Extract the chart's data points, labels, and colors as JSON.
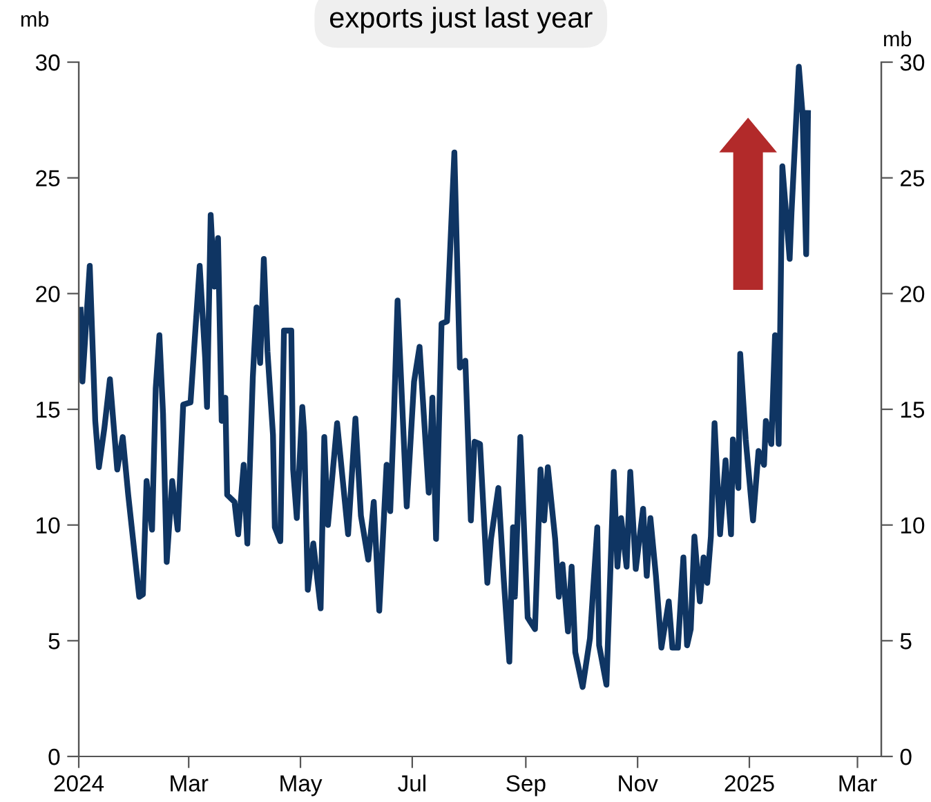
{
  "chart_data": {
    "type": "line",
    "title": "exports just last year",
    "ylabel": "mb",
    "y2label": "mb",
    "x": [
      "2024-01-02",
      "2024-01-03",
      "2024-01-07",
      "2024-01-10",
      "2024-01-12",
      "2024-01-15",
      "2024-01-18",
      "2024-01-22",
      "2024-01-25",
      "2024-01-28",
      "2024-02-03",
      "2024-02-05",
      "2024-02-07",
      "2024-02-10",
      "2024-02-12",
      "2024-02-14",
      "2024-02-16",
      "2024-02-18",
      "2024-02-21",
      "2024-02-24",
      "2024-02-27",
      "2024-03-02",
      "2024-03-07",
      "2024-03-10",
      "2024-03-11",
      "2024-03-13",
      "2024-03-15",
      "2024-03-17",
      "2024-03-19",
      "2024-03-21",
      "2024-03-22",
      "2024-03-26",
      "2024-03-28",
      "2024-03-31",
      "2024-04-02",
      "2024-04-05",
      "2024-04-07",
      "2024-04-09",
      "2024-04-11",
      "2024-04-13",
      "2024-04-16",
      "2024-04-17",
      "2024-04-20",
      "2024-04-22",
      "2024-04-26",
      "2024-04-27",
      "2024-04-29",
      "2024-05-02",
      "2024-05-03",
      "2024-05-05",
      "2024-05-08",
      "2024-05-12",
      "2024-05-14",
      "2024-05-16",
      "2024-05-21",
      "2024-05-27",
      "2024-05-31",
      "2024-06-03",
      "2024-06-07",
      "2024-06-10",
      "2024-06-13",
      "2024-06-17",
      "2024-06-19",
      "2024-06-21",
      "2024-06-23",
      "2024-06-28",
      "2024-07-02",
      "2024-07-05",
      "2024-07-10",
      "2024-07-12",
      "2024-07-14",
      "2024-07-17",
      "2024-07-20",
      "2024-07-24",
      "2024-07-27",
      "2024-07-30",
      "2024-08-02",
      "2024-08-04",
      "2024-08-07",
      "2024-08-11",
      "2024-08-13",
      "2024-08-17",
      "2024-08-20",
      "2024-08-23",
      "2024-08-25",
      "2024-08-26",
      "2024-08-29",
      "2024-09-02",
      "2024-09-06",
      "2024-09-09",
      "2024-09-11",
      "2024-09-13",
      "2024-09-17",
      "2024-09-19",
      "2024-09-21",
      "2024-09-24",
      "2024-09-26",
      "2024-09-28",
      "2024-10-02",
      "2024-10-06",
      "2024-10-10",
      "2024-10-11",
      "2024-10-15",
      "2024-10-19",
      "2024-10-21",
      "2024-10-23",
      "2024-10-26",
      "2024-10-28",
      "2024-10-31",
      "2024-11-04",
      "2024-11-06",
      "2024-11-08",
      "2024-11-11",
      "2024-11-14",
      "2024-11-18",
      "2024-11-20",
      "2024-11-23",
      "2024-11-26",
      "2024-11-28",
      "2024-11-30",
      "2024-12-02",
      "2024-12-05",
      "2024-12-07",
      "2024-12-09",
      "2024-12-11",
      "2024-12-13",
      "2024-12-16",
      "2024-12-19",
      "2024-12-22",
      "2024-12-23",
      "2024-12-26",
      "2024-12-27",
      "2024-12-30",
      "2025-01-03",
      "2025-01-06",
      "2025-01-09",
      "2025-01-10",
      "2025-01-13",
      "2025-01-15",
      "2025-01-17",
      "2025-01-19",
      "2025-01-23",
      "2025-01-24",
      "2025-01-28",
      "2025-01-30",
      "2025-02-01",
      "2025-02-02"
    ],
    "series": [
      {
        "color": "#0f3563",
        "values": [
          19.3,
          16.2,
          21.2,
          14.5,
          12.5,
          14.2,
          16.3,
          12.4,
          13.8,
          11.3,
          6.9,
          7.0,
          11.9,
          9.8,
          15.9,
          18.2,
          14.8,
          8.4,
          11.9,
          9.8,
          15.2,
          15.3,
          21.2,
          17.2,
          15.1,
          23.4,
          20.3,
          22.4,
          14.5,
          15.5,
          11.3,
          11.0,
          9.6,
          12.6,
          9.2,
          16.4,
          19.4,
          17.0,
          21.5,
          17.5,
          13.9,
          9.9,
          9.3,
          18.4,
          18.4,
          12.4,
          10.3,
          15.1,
          14.0,
          7.2,
          9.2,
          6.4,
          13.8,
          10.0,
          14.4,
          9.6,
          14.6,
          10.4,
          8.5,
          11.0,
          6.3,
          12.6,
          10.6,
          14.7,
          19.7,
          10.8,
          16.2,
          17.7,
          11.4,
          15.5,
          9.4,
          18.7,
          18.8,
          26.1,
          16.8,
          17.1,
          10.2,
          13.6,
          13.5,
          7.5,
          9.4,
          11.6,
          7.6,
          4.1,
          9.9,
          6.9,
          13.8,
          6.0,
          5.5,
          12.4,
          10.2,
          12.5,
          9.4,
          6.9,
          8.3,
          5.4,
          8.2,
          4.5,
          3.0,
          5.1,
          9.9,
          4.8,
          3.1,
          12.3,
          8.2,
          10.3,
          8.2,
          12.3,
          8.1,
          10.7,
          7.8,
          10.3,
          7.8,
          4.7,
          6.7,
          4.7,
          4.7,
          8.6,
          4.8,
          5.5,
          9.5,
          6.7,
          8.6,
          7.5,
          9.5,
          14.4,
          9.6,
          12.8,
          9.6,
          13.7,
          11.6,
          17.4,
          13.7,
          10.2,
          13.2,
          12.6,
          14.5,
          13.5,
          18.2,
          13.5,
          25.5,
          21.5,
          23.5,
          29.8,
          27.8,
          21.7,
          27.8
        ]
      }
    ],
    "xlim": [
      "2024-01-01",
      "2025-03-14"
    ],
    "xticks": [
      {
        "value": "2024-01-01",
        "label": "2024"
      },
      {
        "value": "2024-03-01",
        "label": "Mar"
      },
      {
        "value": "2024-05-01",
        "label": "May"
      },
      {
        "value": "2024-07-01",
        "label": "Jul"
      },
      {
        "value": "2024-09-01",
        "label": "Sep"
      },
      {
        "value": "2024-11-01",
        "label": "Nov"
      },
      {
        "value": "2025-01-01",
        "label": "2025"
      },
      {
        "value": "2025-03-01",
        "label": "Mar"
      }
    ],
    "ylim": [
      0,
      30
    ],
    "yticks": [
      0,
      5,
      10,
      15,
      20,
      25,
      30
    ],
    "y2lim": [
      0,
      30
    ],
    "y2ticks": [
      0,
      5,
      10,
      15,
      20,
      25,
      30
    ],
    "grid": false,
    "legend": false,
    "line_style": "solid",
    "marker": "none"
  }
}
